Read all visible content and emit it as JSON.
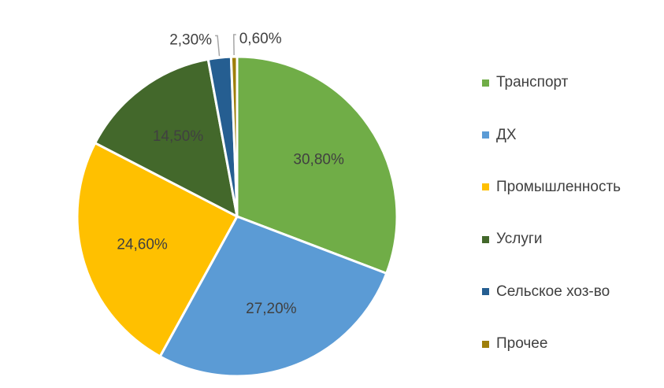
{
  "chart_data": {
    "type": "pie",
    "categories": [
      "Транспорт",
      "ДХ",
      "Промышленность",
      "Услуги",
      "Сельское хоз-во",
      "Прочее"
    ],
    "values": [
      30.8,
      27.2,
      24.6,
      14.5,
      2.3,
      0.6
    ],
    "labels": [
      "30,80%",
      "27,20%",
      "24,60%",
      "14,50%",
      "2,30%",
      "0,60%"
    ],
    "colors": [
      "#70ad47",
      "#5b9bd5",
      "#ffc000",
      "#43682b",
      "#255e91",
      "#9e7f0a"
    ],
    "label_colors": [
      "#404040",
      "#404040",
      "#404040",
      "#404040",
      "#404040",
      "#404040"
    ],
    "legend_position": "right"
  }
}
